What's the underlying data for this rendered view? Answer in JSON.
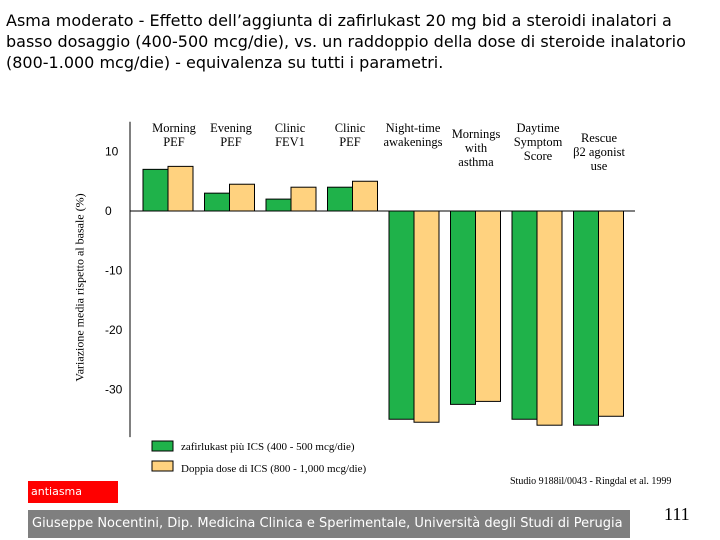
{
  "slide": {
    "title": "Asma moderato - Effetto dell’aggiunta di zafirlukast 20 mg bid a steroidi inalatori a basso dosaggio (400-500 mcg/die), vs. un raddoppio della dose di steroide inalatorio (800-1.000 mcg/die) - equivalenza su tutti i parametri.",
    "badge": "antiasma",
    "source": "Studio 9188il/0043 - Ringdal et al. 1999",
    "footer": "Giuseppe Nocentini, Dip. Medicina Clinica e Sperimentale, Università degli Studi di Perugia",
    "page_number": "111"
  },
  "colors": {
    "series1": "#1fb24a",
    "series2": "#ffd27f",
    "badge": "#ff0000",
    "footer": "#7f7f7f"
  },
  "chart_data": {
    "type": "bar",
    "title": "",
    "xlabel": "",
    "ylabel": "Variazione media rispetto al basale (%)",
    "ylim": [
      -38,
      15
    ],
    "yticks": [
      "10",
      "0",
      "-10",
      "-20",
      "-30"
    ],
    "ytick_values": [
      10,
      0,
      -10,
      -20,
      -30
    ],
    "grid": false,
    "legend_position": "bottom",
    "categories": [
      [
        "Morning",
        "PEF"
      ],
      [
        "Evening",
        "PEF"
      ],
      [
        "Clinic",
        "FEV1"
      ],
      [
        "Clinic",
        "PEF"
      ],
      [
        "Night-time",
        "awakenings"
      ],
      [
        "Mornings",
        "with",
        "asthma"
      ],
      [
        "Daytime",
        "Symptom",
        "Score"
      ],
      [
        "Rescue",
        "β2 agonist",
        "use"
      ]
    ],
    "series": [
      {
        "name": "zafirlukast più ICS (400 - 500 mcg/die)",
        "values": [
          7,
          3,
          2,
          4,
          -35,
          -32.5,
          -35,
          -36
        ]
      },
      {
        "name": "Doppia dose di ICS (800 - 1,000 mcg/die)",
        "values": [
          7.5,
          4.5,
          4,
          5,
          -35.5,
          -32,
          -36,
          -34.5
        ]
      }
    ]
  }
}
